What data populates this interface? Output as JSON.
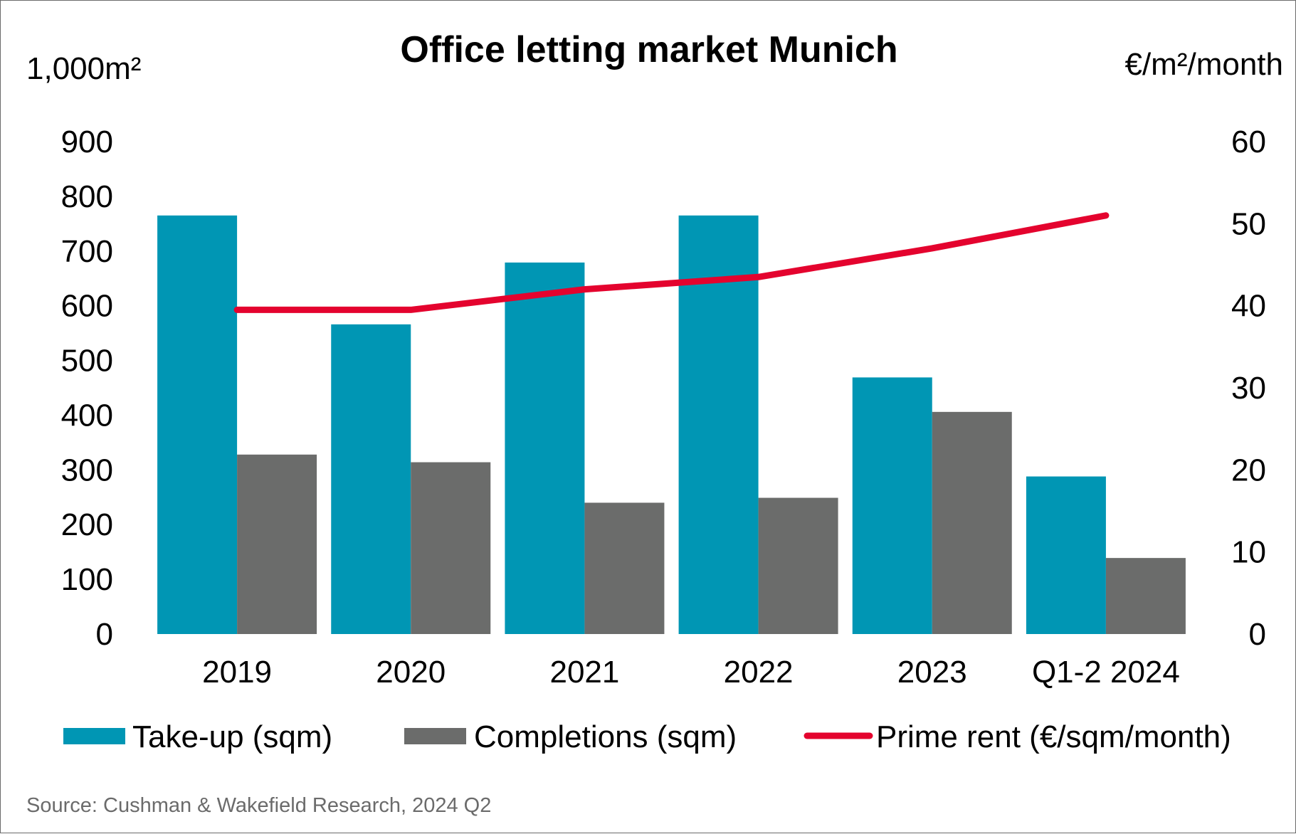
{
  "chart_data": {
    "type": "bar",
    "title": "Office letting market Munich",
    "y_left_unit": "1,000m²",
    "y_right_unit": "€/m²/month",
    "categories": [
      "2019",
      "2020",
      "2021",
      "2022",
      "2023",
      "Q1-2 2024"
    ],
    "series": [
      {
        "name": "Take-up (sqm)",
        "type": "bar",
        "axis": "left",
        "color": "#0096b4",
        "values": [
          765,
          566,
          679,
          765,
          469,
          288
        ]
      },
      {
        "name": "Completions (sqm)",
        "type": "bar",
        "axis": "left",
        "color": "#6b6c6b",
        "values": [
          328,
          314,
          240,
          249,
          406,
          139
        ]
      },
      {
        "name": "Prime rent (€/sqm/month)",
        "type": "line",
        "axis": "right",
        "color": "#e4032e",
        "values": [
          39.5,
          39.5,
          42,
          43.5,
          47,
          51
        ]
      }
    ],
    "y_left_lim": [
      0,
      900
    ],
    "y_left_ticks": [
      "0",
      "100",
      "200",
      "300",
      "400",
      "500",
      "600",
      "700",
      "800",
      "900"
    ],
    "y_right_lim": [
      0,
      60
    ],
    "y_right_ticks": [
      "0",
      "10",
      "20",
      "30",
      "40",
      "50",
      "60"
    ],
    "grid": false,
    "legend_position": "bottom"
  },
  "source_note": "Source: Cushman & Wakefield Research, 2024 Q2"
}
